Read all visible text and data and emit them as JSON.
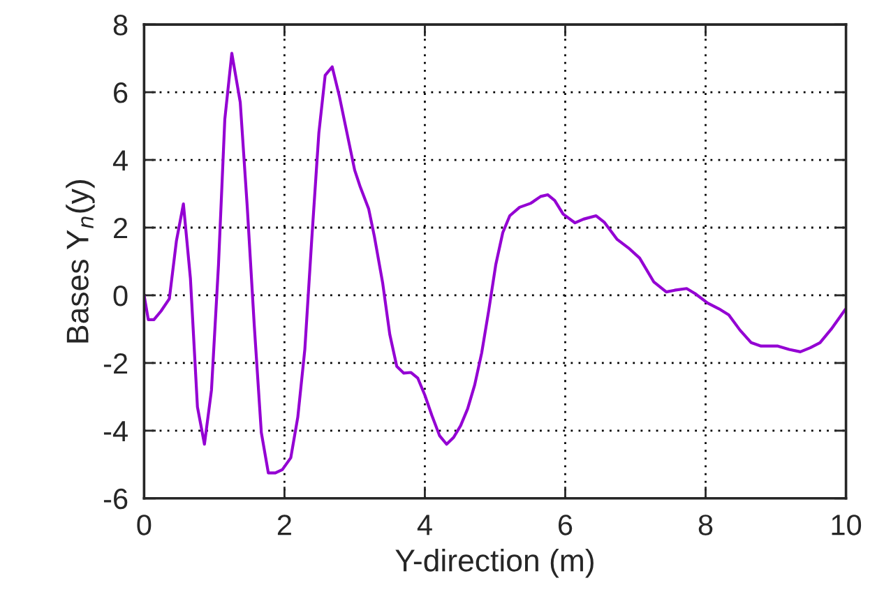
{
  "chart_data": {
    "type": "line",
    "xlabel": "Y-direction (m)",
    "ylabel": "Bases Y$_{n}$(y)",
    "xlim": [
      0,
      10
    ],
    "ylim": [
      -6,
      8
    ],
    "xticks": [
      0,
      2,
      4,
      6,
      8,
      10
    ],
    "yticks": [
      -6,
      -4,
      -2,
      0,
      2,
      4,
      6,
      8
    ],
    "grid": true,
    "line_style": "solid",
    "series": [
      {
        "color": "#9400d3",
        "x": [
          0,
          0.06,
          0.14,
          0.24,
          0.36,
          0.46,
          0.56,
          0.66,
          0.76,
          0.86,
          0.96,
          1.06,
          1.15,
          1.25,
          1.37,
          1.47,
          1.57,
          1.67,
          1.77,
          1.87,
          1.97,
          2.09,
          2.19,
          2.29,
          2.39,
          2.49,
          2.58,
          2.68,
          2.78,
          2.88,
          3.0,
          3.08,
          3.2,
          3.28,
          3.4,
          3.5,
          3.6,
          3.7,
          3.8,
          3.9,
          4.0,
          4.1,
          4.21,
          4.31,
          4.41,
          4.51,
          4.61,
          4.71,
          4.81,
          4.91,
          5.01,
          5.11,
          5.21,
          5.35,
          5.51,
          5.65,
          5.75,
          5.85,
          5.97,
          6.14,
          6.26,
          6.44,
          6.56,
          6.74,
          6.9,
          7.06,
          7.26,
          7.44,
          7.56,
          7.73,
          7.85,
          8.03,
          8.19,
          8.33,
          8.49,
          8.65,
          8.79,
          9.03,
          9.19,
          9.35,
          9.49,
          9.63,
          9.79,
          9.99
        ],
        "values": [
          0,
          -0.72,
          -0.72,
          -0.47,
          -0.1,
          1.6,
          2.7,
          0.5,
          -3.3,
          -4.4,
          -2.8,
          0.9,
          5.2,
          7.15,
          5.7,
          2.6,
          -0.9,
          -4.05,
          -5.25,
          -5.25,
          -5.15,
          -4.8,
          -3.6,
          -1.6,
          1.7,
          4.8,
          6.5,
          6.75,
          5.9,
          4.9,
          3.7,
          3.2,
          2.55,
          1.75,
          0.35,
          -1.15,
          -2.1,
          -2.3,
          -2.28,
          -2.45,
          -2.95,
          -3.55,
          -4.15,
          -4.4,
          -4.2,
          -3.85,
          -3.35,
          -2.65,
          -1.7,
          -0.45,
          0.9,
          1.85,
          2.35,
          2.6,
          2.72,
          2.92,
          2.97,
          2.8,
          2.4,
          2.14,
          2.25,
          2.35,
          2.15,
          1.65,
          1.4,
          1.1,
          0.4,
          0.1,
          0.15,
          0.2,
          0.05,
          -0.23,
          -0.4,
          -0.58,
          -1.03,
          -1.4,
          -1.5,
          -1.5,
          -1.6,
          -1.67,
          -1.55,
          -1.4,
          -1.0,
          -0.42
        ]
      }
    ]
  }
}
